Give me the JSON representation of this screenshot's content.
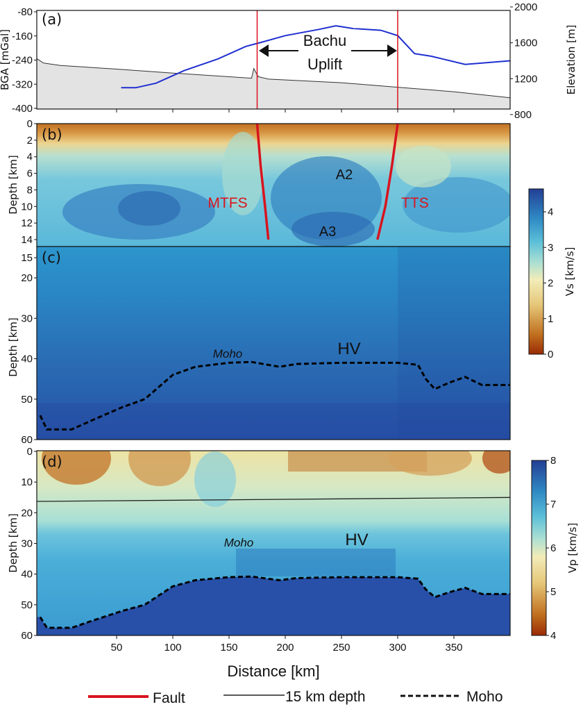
{
  "chart_data": [
    {
      "panel": "(a)",
      "type": "line",
      "ylabel": "BGA [mGal]",
      "ylabel_right": "Elevation [m]",
      "yticks": [
        -80,
        -160,
        -240,
        -320,
        -400
      ],
      "yticks_right": [
        2000,
        1600,
        1200,
        800
      ],
      "ylim": [
        -400,
        -80
      ],
      "ylim_right": [
        800,
        2000
      ],
      "series": [
        {
          "axis": "right",
          "color": "#1f2fd0",
          "x": [
            54,
            67,
            85,
            110,
            140,
            165,
            180,
            200,
            230,
            245,
            260,
            285,
            300,
            315,
            330,
            360,
            400
          ],
          "y": [
            1100,
            1100,
            1150,
            1290,
            1420,
            1560,
            1610,
            1680,
            1750,
            1790,
            1760,
            1740,
            1680,
            1480,
            1450,
            1360,
            1400
          ]
        },
        {
          "axis": "left",
          "color": "#333333",
          "fill": "#e3e3e3",
          "x": [
            -21,
            -15,
            0,
            50,
            100,
            170,
            172,
            176,
            185,
            250,
            300,
            350,
            400
          ],
          "y": [
            -235,
            -250,
            -258,
            -270,
            -283,
            -300,
            -268,
            -295,
            -303,
            -315,
            -330,
            -345,
            -365
          ]
        }
      ],
      "faults_x": [
        175,
        300
      ],
      "annotations": {
        "label": "Bachu",
        "label2": "Uplift"
      }
    },
    {
      "panel": "(b)",
      "type": "heatmap",
      "ylabel": "Depth [km]",
      "yticks": [
        0,
        2,
        4,
        6,
        8,
        10,
        12,
        14
      ],
      "ylim": [
        14.8,
        0
      ],
      "faults": [
        {
          "name": "MTFS",
          "x": [
            175,
            178,
            182,
            185
          ],
          "y": [
            0,
            5,
            10,
            14
          ]
        },
        {
          "name": "TTS",
          "x": [
            300,
            295,
            289,
            282
          ],
          "y": [
            0,
            5,
            10,
            14
          ]
        }
      ],
      "labels": [
        "A2",
        "A3"
      ]
    },
    {
      "panel": "(c)",
      "type": "heatmap",
      "ylabel": "Depth [km]",
      "yticks": [
        15,
        20,
        30,
        40,
        50,
        60
      ],
      "ylim": [
        60,
        12
      ],
      "labels": [
        "Moho",
        "HV"
      ]
    },
    {
      "panel": "(d)",
      "type": "heatmap",
      "ylabel": "Depth [km]",
      "xlabel": "Distance [km]",
      "xticks": [
        50,
        100,
        150,
        200,
        250,
        300,
        350
      ],
      "xlim": [
        -21,
        400
      ],
      "yticks": [
        0,
        10,
        20,
        30,
        40,
        50,
        60
      ],
      "ylim": [
        60,
        0
      ],
      "depth15": {
        "x": [
          -21,
          400
        ],
        "y": [
          16.3,
          15
        ]
      },
      "labels": [
        "Moho",
        "HV"
      ]
    }
  ],
  "moho": {
    "x": [
      -18,
      -12,
      10,
      30,
      55,
      75,
      100,
      120,
      150,
      170,
      195,
      210,
      250,
      300,
      318,
      325,
      333,
      345,
      360,
      375,
      400
    ],
    "y": [
      54,
      57.5,
      57.5,
      55,
      52,
      50,
      44,
      42,
      41,
      40.8,
      42,
      41.3,
      41,
      41,
      41.5,
      45,
      47.5,
      46,
      44.5,
      46.5,
      46.5
    ]
  },
  "colorbars": {
    "vs": {
      "label": "Vs [km/s]",
      "ticks": [
        0,
        1,
        2,
        3,
        4
      ],
      "range": [
        0,
        4.6
      ]
    },
    "vp": {
      "label": "Vp [km/s]",
      "ticks": [
        4,
        5,
        6,
        7,
        8
      ],
      "range": [
        4,
        8
      ]
    }
  },
  "legend": {
    "fault": "Fault",
    "depth": "15 km depth",
    "moho": "Moho"
  },
  "colors": {
    "fault": "#d8141e",
    "elevation": "#1f2fd0",
    "bga": "#333333"
  }
}
